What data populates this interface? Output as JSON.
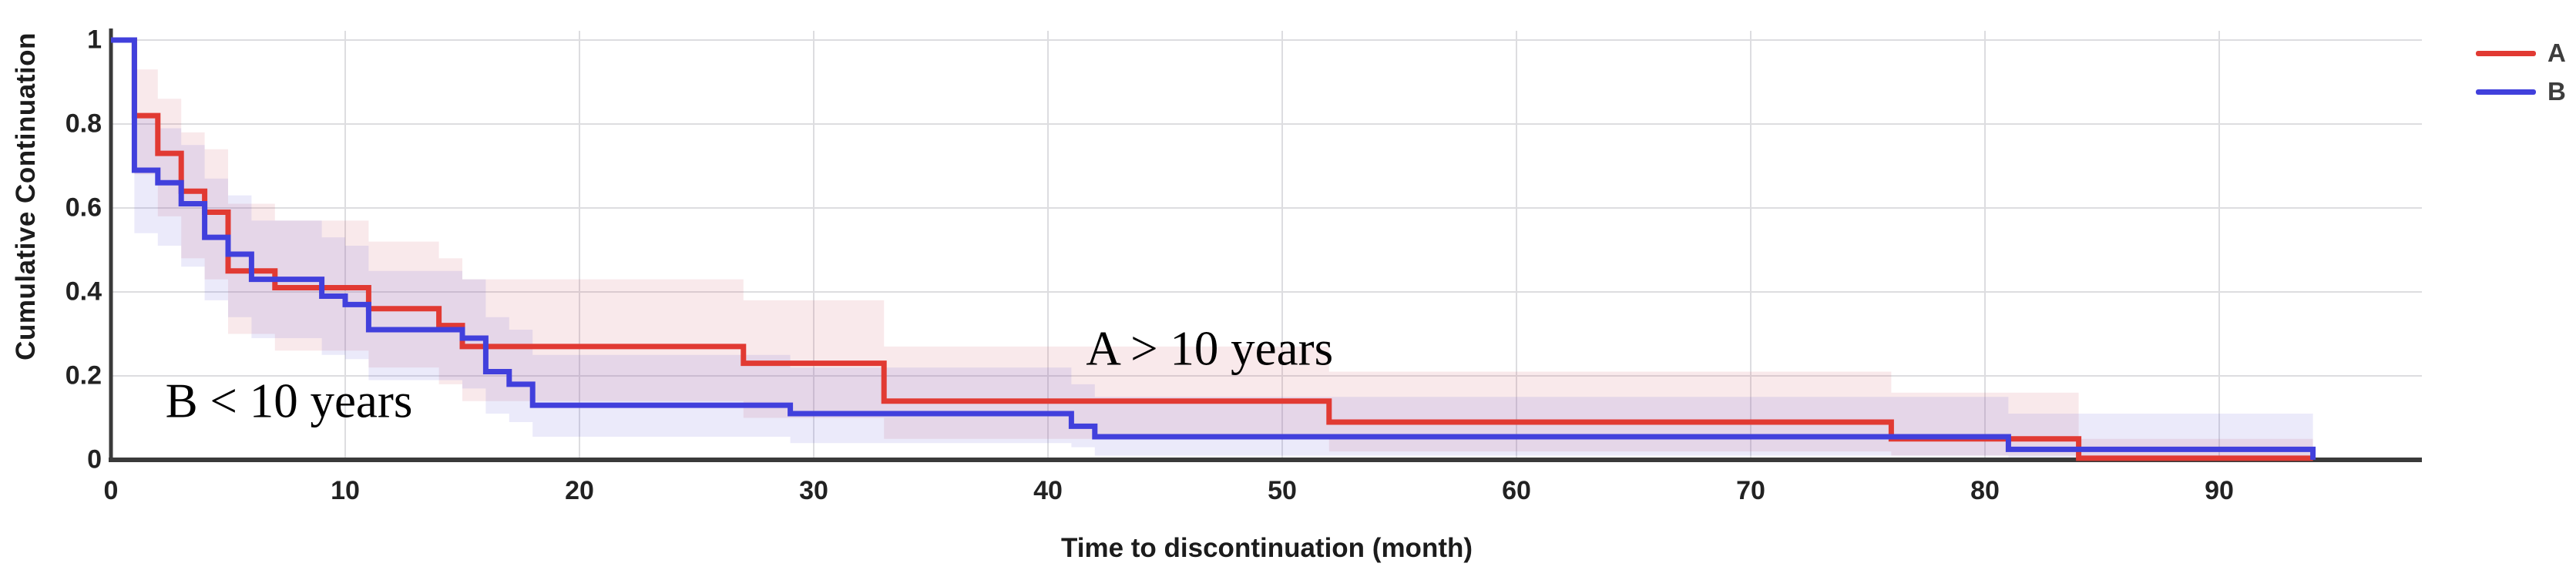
{
  "chart_data": {
    "type": "line",
    "subtype": "kaplan-meier-step",
    "title": "",
    "xlabel": "Time to discontinuation (month)",
    "ylabel": "Cumulative Continuation",
    "xlim": [
      0,
      98.6
    ],
    "ylim": [
      0,
      1
    ],
    "xticks": [
      0,
      10,
      20,
      30,
      40,
      50,
      60,
      70,
      80,
      90
    ],
    "yticks": [
      {
        "v": 0,
        "label": "0"
      },
      {
        "v": 0.2,
        "label": "0.2"
      },
      {
        "v": 0.4,
        "label": "0.4"
      },
      {
        "v": 0.6,
        "label": "0.6"
      },
      {
        "v": 0.8,
        "label": "0.8"
      },
      {
        "v": 1,
        "label": "1"
      }
    ],
    "grid": true,
    "legend_position": "top-right",
    "annotations": [
      {
        "text": "B < 10 years",
        "x": 7.6,
        "y": 0.14
      },
      {
        "text": "A > 10 years",
        "x": 46.9,
        "y": 0.265
      }
    ],
    "series": [
      {
        "name": "A",
        "color": "#e13a33",
        "band_color": "rgba(205,85,100,0.13)",
        "end_time": 94,
        "end_drop": false,
        "steps": [
          {
            "t": 0,
            "v": 1.0,
            "up": 1.0,
            "lo": 1.0
          },
          {
            "t": 1,
            "v": 0.82,
            "up": 0.93,
            "lo": 0.68
          },
          {
            "t": 2,
            "v": 0.73,
            "up": 0.86,
            "lo": 0.58
          },
          {
            "t": 3,
            "v": 0.64,
            "up": 0.78,
            "lo": 0.48
          },
          {
            "t": 4,
            "v": 0.59,
            "up": 0.74,
            "lo": 0.43
          },
          {
            "t": 5,
            "v": 0.45,
            "up": 0.61,
            "lo": 0.3
          },
          {
            "t": 7,
            "v": 0.41,
            "up": 0.57,
            "lo": 0.26
          },
          {
            "t": 11,
            "v": 0.36,
            "up": 0.52,
            "lo": 0.22
          },
          {
            "t": 14,
            "v": 0.32,
            "up": 0.48,
            "lo": 0.18
          },
          {
            "t": 15,
            "v": 0.27,
            "up": 0.43,
            "lo": 0.14
          },
          {
            "t": 27,
            "v": 0.23,
            "up": 0.38,
            "lo": 0.1
          },
          {
            "t": 33,
            "v": 0.14,
            "up": 0.27,
            "lo": 0.05
          },
          {
            "t": 52,
            "v": 0.09,
            "up": 0.21,
            "lo": 0.02
          },
          {
            "t": 76,
            "v": 0.05,
            "up": 0.16,
            "lo": 0.01
          },
          {
            "t": 84,
            "v": 0.004,
            "up": 0.05,
            "lo": 0.0
          }
        ]
      },
      {
        "name": "B",
        "color": "#4140dc",
        "band_color": "rgba(100,95,215,0.13)",
        "end_time": 94,
        "end_drop": true,
        "steps": [
          {
            "t": 0,
            "v": 1.0,
            "up": 1.0,
            "lo": 1.0
          },
          {
            "t": 1,
            "v": 0.69,
            "up": 0.82,
            "lo": 0.54
          },
          {
            "t": 2,
            "v": 0.66,
            "up": 0.79,
            "lo": 0.51
          },
          {
            "t": 3,
            "v": 0.61,
            "up": 0.75,
            "lo": 0.46
          },
          {
            "t": 4,
            "v": 0.53,
            "up": 0.67,
            "lo": 0.38
          },
          {
            "t": 5,
            "v": 0.49,
            "up": 0.63,
            "lo": 0.34
          },
          {
            "t": 6,
            "v": 0.43,
            "up": 0.57,
            "lo": 0.29
          },
          {
            "t": 9,
            "v": 0.39,
            "up": 0.53,
            "lo": 0.25
          },
          {
            "t": 10,
            "v": 0.37,
            "up": 0.51,
            "lo": 0.24
          },
          {
            "t": 11,
            "v": 0.31,
            "up": 0.45,
            "lo": 0.19
          },
          {
            "t": 15,
            "v": 0.29,
            "up": 0.43,
            "lo": 0.17
          },
          {
            "t": 16,
            "v": 0.21,
            "up": 0.34,
            "lo": 0.11
          },
          {
            "t": 17,
            "v": 0.18,
            "up": 0.31,
            "lo": 0.09
          },
          {
            "t": 18,
            "v": 0.13,
            "up": 0.25,
            "lo": 0.055
          },
          {
            "t": 29,
            "v": 0.11,
            "up": 0.22,
            "lo": 0.04
          },
          {
            "t": 41,
            "v": 0.08,
            "up": 0.18,
            "lo": 0.03
          },
          {
            "t": 42,
            "v": 0.055,
            "up": 0.15,
            "lo": 0.01
          },
          {
            "t": 81,
            "v": 0.025,
            "up": 0.11,
            "lo": 0.0
          }
        ]
      }
    ],
    "style": {
      "grid_color": "#dddde0",
      "axis_color": "#3a3a3a",
      "tick_color": "#222222",
      "annotation_color": "#000000"
    }
  }
}
